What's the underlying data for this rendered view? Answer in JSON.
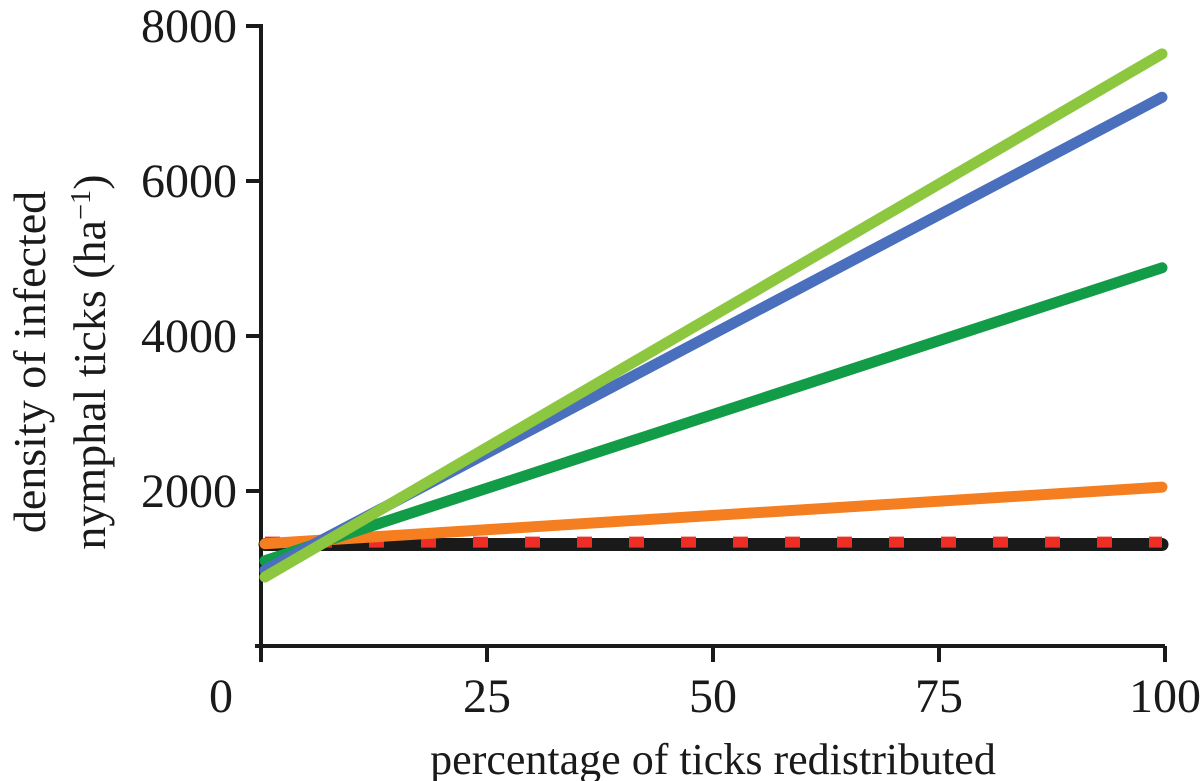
{
  "figure": {
    "background_color": "#ffffff",
    "text_color": "#1a1a1a",
    "x_axis_title": "percentage of ticks redistributed",
    "y_axis_title_line1": "density of infected",
    "y_axis_title_line2_prefix": "nymphal ticks (ha",
    "y_axis_title_superscript": "−1",
    "y_axis_title_line2_suffix": ")"
  },
  "chart_data": {
    "type": "line",
    "title": "",
    "xlabel": "percentage of ticks redistributed",
    "ylabel": "density of infected nymphal ticks (ha⁻¹)",
    "xlim": [
      0,
      100
    ],
    "ylim": [
      0,
      8000
    ],
    "x_ticks": [
      0,
      25,
      50,
      75,
      100
    ],
    "y_ticks": [
      2000,
      4000,
      6000,
      8000
    ],
    "grid": false,
    "legend_position": "none",
    "x": [
      0,
      100
    ],
    "series": [
      {
        "name": "baseline-black",
        "color": "#1a1a1a",
        "style": "solid",
        "stroke_width": 13,
        "values": [
          1310,
          1310
        ]
      },
      {
        "name": "baseline-red-dashed",
        "color": "#ee2d24",
        "style": "dashed",
        "stroke_width": 11,
        "values": [
          1340,
          1340
        ]
      },
      {
        "name": "orange",
        "color": "#f57e20",
        "style": "solid",
        "stroke_width": 11,
        "values": [
          1320,
          2050
        ]
      },
      {
        "name": "dark-green",
        "color": "#129c48",
        "style": "solid",
        "stroke_width": 11,
        "values": [
          1100,
          4880
        ]
      },
      {
        "name": "blue",
        "color": "#4a70bd",
        "style": "solid",
        "stroke_width": 11,
        "values": [
          980,
          7080
        ]
      },
      {
        "name": "light-green",
        "color": "#8dc63f",
        "style": "solid",
        "stroke_width": 11,
        "values": [
          890,
          7640
        ]
      }
    ]
  }
}
